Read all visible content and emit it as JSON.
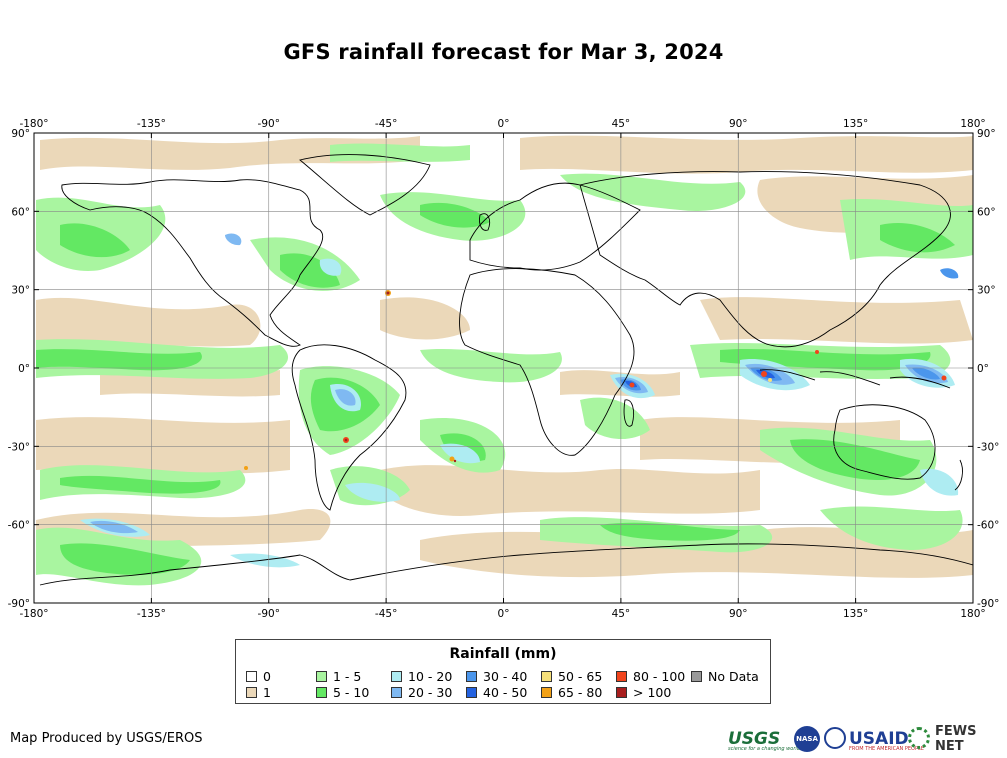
{
  "title": "GFS rainfall forecast for Mar 3, 2024",
  "map": {
    "lon_ticks": [
      "-180°",
      "-135°",
      "-90°",
      "-45°",
      "0°",
      "45°",
      "90°",
      "135°",
      "180°"
    ],
    "lat_ticks": [
      "90°",
      "60°",
      "30°",
      "0°",
      "-30°",
      "-60°",
      "-90°"
    ],
    "lon_range": [
      -180,
      180
    ],
    "lat_range": [
      -90,
      90
    ],
    "grid": true
  },
  "legend": {
    "title": "Rainfall (mm)",
    "items": [
      {
        "label": "0",
        "color": "#ffffff"
      },
      {
        "label": "1",
        "color": "#ebd8b9"
      },
      {
        "label": "1 - 5",
        "color": "#a9f5a0"
      },
      {
        "label": "5 - 10",
        "color": "#63e863"
      },
      {
        "label": "10 - 20",
        "color": "#aeecf2"
      },
      {
        "label": "20 - 30",
        "color": "#7fb9f2"
      },
      {
        "label": "30 - 40",
        "color": "#4b96ec"
      },
      {
        "label": "40 - 50",
        "color": "#2462e0"
      },
      {
        "label": "50 - 65",
        "color": "#f6e07a"
      },
      {
        "label": "65 - 80",
        "color": "#f2a116"
      },
      {
        "label": "80 - 100",
        "color": "#f0441c"
      },
      {
        "label": "> 100",
        "color": "#a81e1e"
      },
      {
        "label": "No Data",
        "color": "#999999"
      }
    ]
  },
  "credit": "Map Produced by USGS/EROS",
  "logos": {
    "usgs": "USGS",
    "usgs_tagline": "science for a changing world",
    "nasa": "NASA",
    "usaid": "USAID",
    "usaid_tagline": "FROM THE AMERICAN PEOPLE",
    "fews": "FEWS NET"
  }
}
